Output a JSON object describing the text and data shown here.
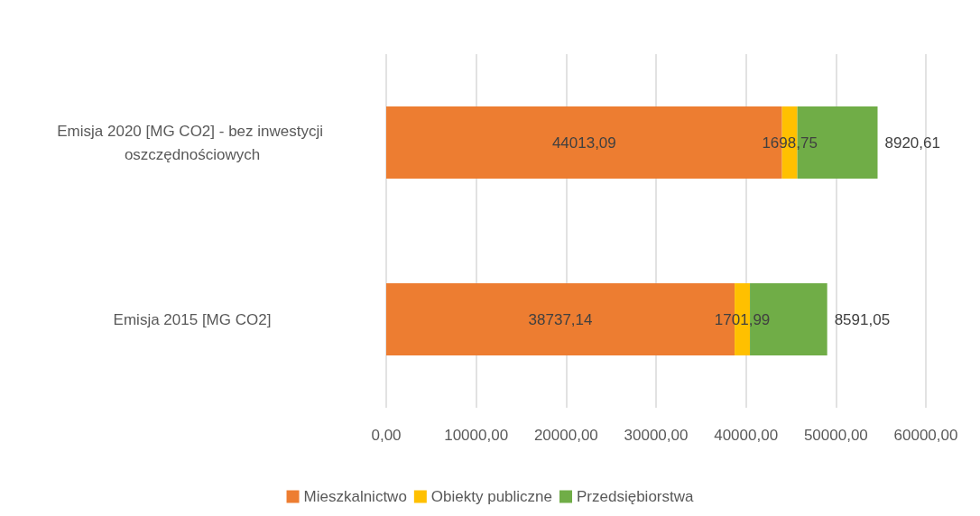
{
  "chart_data": {
    "type": "bar",
    "orientation": "horizontal",
    "stacked": true,
    "categories": [
      "Emisja 2020 [MG CO2] - bez inwestycji oszczędnościowych",
      "Emisja 2015 [MG CO2]"
    ],
    "series": [
      {
        "name": "Mieszkalnictwo",
        "color": "#ed7d31",
        "values": [
          44013.09,
          38737.14
        ],
        "value_labels": [
          "44013,09",
          "38737,14"
        ]
      },
      {
        "name": "Obiekty publiczne",
        "color": "#ffc000",
        "values": [
          1698.75,
          1701.99
        ],
        "value_labels": [
          "1698,75",
          "1701,99"
        ]
      },
      {
        "name": "Przedsiębiorstwa",
        "color": "#70ad47",
        "values": [
          8920.61,
          8591.05
        ],
        "value_labels": [
          "8920,61",
          "8591,05"
        ]
      }
    ],
    "xlim": [
      0,
      60000
    ],
    "xticks": [
      {
        "value": 0,
        "label": "0,00"
      },
      {
        "value": 10000,
        "label": "10000,00"
      },
      {
        "value": 20000,
        "label": "20000,00"
      },
      {
        "value": 30000,
        "label": "30000,00"
      },
      {
        "value": 40000,
        "label": "40000,00"
      },
      {
        "value": 50000,
        "label": "50000,00"
      },
      {
        "value": 60000,
        "label": "60000,00"
      }
    ],
    "grid": "x",
    "legend": "bottom"
  }
}
